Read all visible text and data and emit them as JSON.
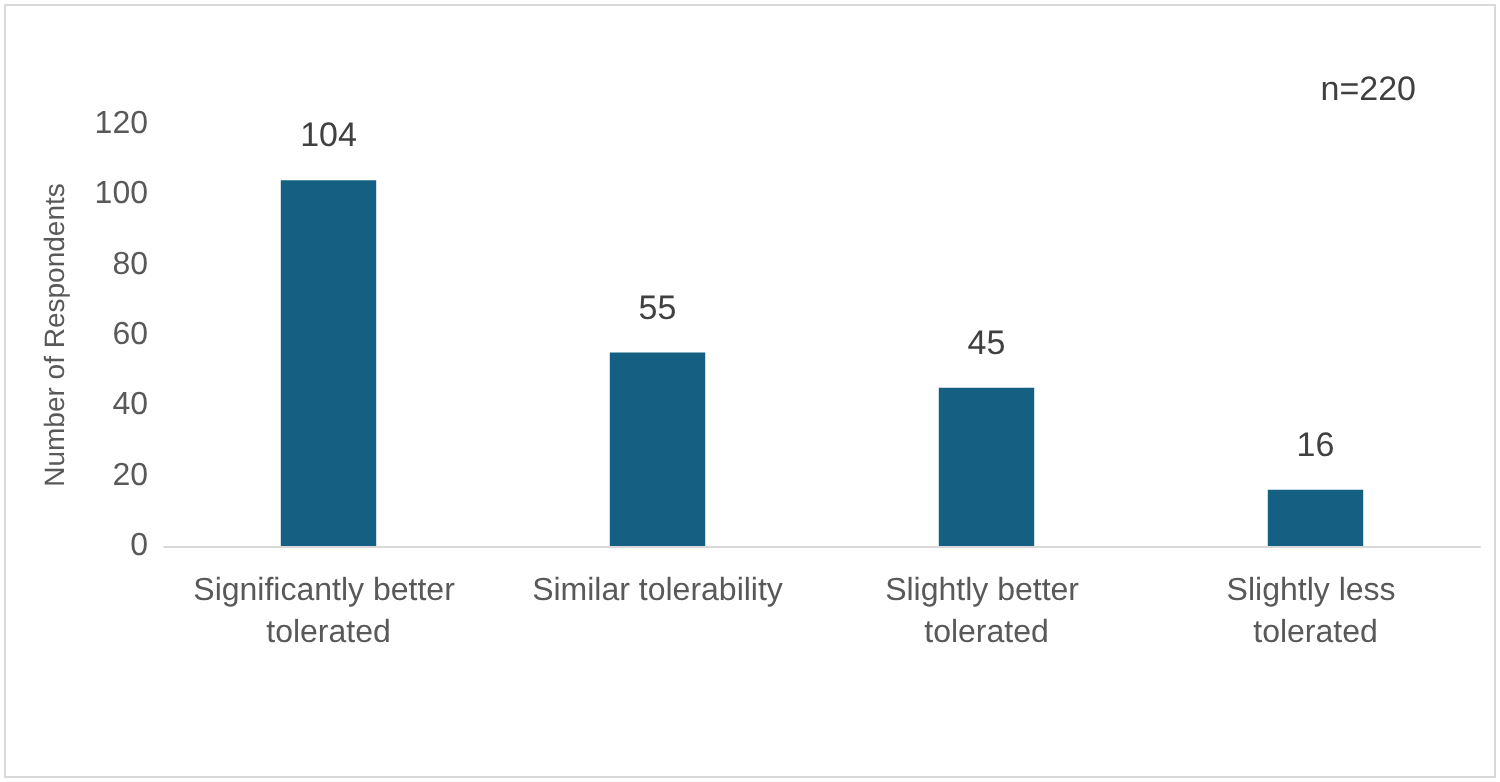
{
  "chart_data": {
    "type": "bar",
    "categories": [
      "Significantly better tolerated",
      "Similar tolerability",
      "Slightly better tolerated",
      "Slightly less tolerated"
    ],
    "values": [
      104,
      55,
      45,
      16
    ],
    "color": "#156082",
    "ylabel": "Number of Respondents",
    "ylim": [
      0,
      120
    ],
    "yticks": [
      0,
      20,
      40,
      60,
      80,
      100,
      120
    ],
    "grid": false,
    "data_labels": true,
    "annotations": [
      "n=220"
    ]
  }
}
